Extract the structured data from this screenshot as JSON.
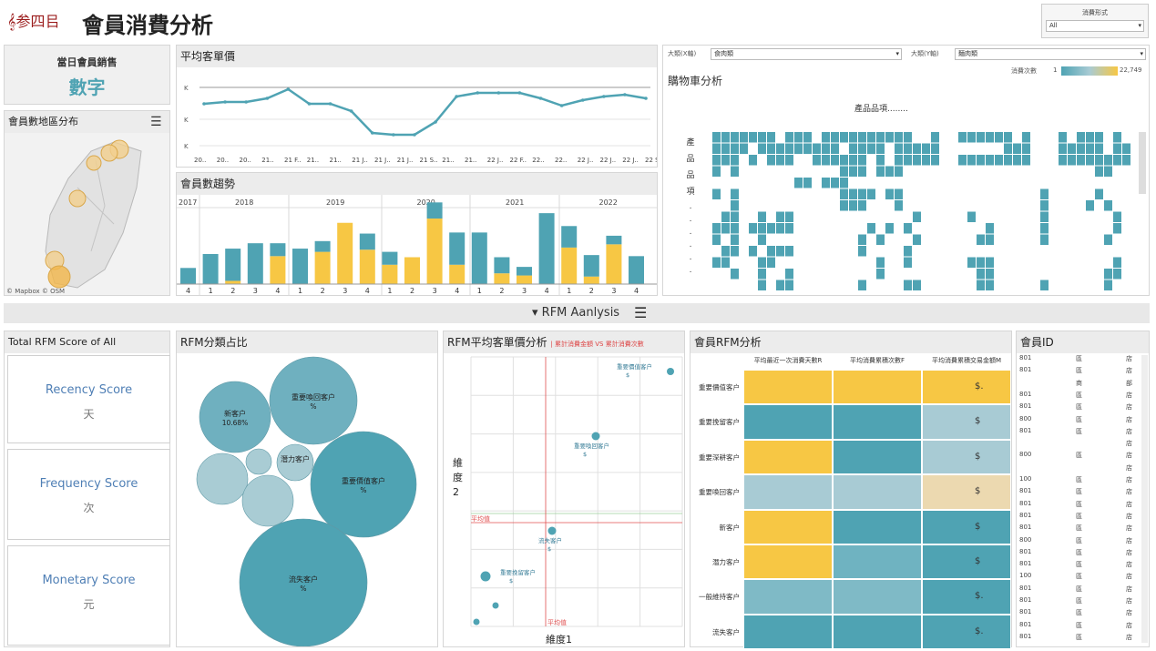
{
  "header": {
    "title": "會員消費分析",
    "logo_text": "𝄞参四㠯",
    "filter_label": "消費形式",
    "filter_value": "All"
  },
  "kpi": {
    "label": "當日會員銷售",
    "value": "數字"
  },
  "map": {
    "title": "會員數地區分布",
    "credit": "© Mapbox © OSM"
  },
  "avg_price": {
    "title": "平均客單價",
    "y_ticks": [
      "K",
      "K",
      "K"
    ],
    "x_ticks": [
      "20..",
      "20..",
      "20..",
      "21..",
      "21 F..",
      "21..",
      "21..",
      "21 J..",
      "21 J..",
      "21 J..",
      "21 S..",
      "21..",
      "21..",
      "22 J..",
      "22 F..",
      "22..",
      "22..",
      "22 J..",
      "22 J..",
      "22 J..",
      "22 S.."
    ],
    "values": [
      1.0,
      1.05,
      1.05,
      1.15,
      1.4,
      1.0,
      1.0,
      0.8,
      0.2,
      0.15,
      0.15,
      0.5,
      1.2,
      1.3,
      1.3,
      1.3,
      1.15,
      0.95,
      1.1,
      1.2,
      1.25,
      1.15
    ]
  },
  "member_trend": {
    "title": "會員數趨勢",
    "years": [
      "2017",
      "2018",
      "2019",
      "2020",
      "2021",
      "2022"
    ],
    "quarters": [
      "4",
      "1",
      "2",
      "3",
      "4",
      "1",
      "2",
      "3",
      "4",
      "1",
      "2",
      "3",
      "4",
      "1",
      "2",
      "3",
      "4",
      "1",
      "2",
      "3",
      "4"
    ],
    "blue": [
      15,
      28,
      30,
      38,
      12,
      33,
      10,
      0,
      15,
      12,
      0,
      15,
      30,
      48,
      15,
      8,
      66,
      20,
      20,
      8,
      26
    ],
    "gold": [
      0,
      0,
      3,
      0,
      26,
      0,
      30,
      57,
      32,
      18,
      25,
      61,
      18,
      0,
      10,
      8,
      0,
      34,
      7,
      37,
      0
    ]
  },
  "cart": {
    "title": "購物車分析",
    "x_label": "大類(X軸)",
    "x_value": "食肉類",
    "y_label": "大類(Y軸)",
    "y_value": "麵肉類",
    "legend_label": "消費次數",
    "legend_min": "1",
    "legend_max": "22,749",
    "col_header": "產品品項........",
    "row_header": [
      "產",
      "品",
      "品",
      "項",
      ".",
      ".",
      ".",
      ".",
      ".",
      "."
    ]
  },
  "section_title": "▾ RFM Aanlysis",
  "rfm_total": {
    "title": "Total RFM Score of All",
    "cards": [
      {
        "name": "Recency Score",
        "unit": "天"
      },
      {
        "name": "Frequency Score",
        "unit": "次"
      },
      {
        "name": "Monetary Score",
        "unit": "元"
      }
    ]
  },
  "bubbles": {
    "title": "RFM分類占比",
    "items": [
      {
        "label": "新客户",
        "sub": "10.68%"
      },
      {
        "label": "重要喚回客户",
        "sub": "%"
      },
      {
        "label": "潛力客户",
        "sub": ""
      },
      {
        "label": "重要價值客户",
        "sub": "%"
      },
      {
        "label": "流失客户",
        "sub": "%"
      },
      {
        "label": "",
        "sub": ""
      },
      {
        "label": "",
        "sub": ""
      },
      {
        "label": "",
        "sub": ""
      }
    ]
  },
  "scatter": {
    "title": "RFM平均客單價分析",
    "legend": "| 累計消費金額 VS 累計消費次數",
    "x_label": "維度1",
    "y_label": "維度2",
    "avg_h": "平均值",
    "avg_v": "平均值",
    "points": [
      {
        "label": "重要價值客户",
        "sub": "$"
      },
      {
        "label": "重要喚回客户",
        "sub": "$"
      },
      {
        "label": "流失客户",
        "sub": "$"
      },
      {
        "label": "重要挽留客户",
        "sub": "$"
      },
      {
        "label": "",
        "sub": ""
      },
      {
        "label": "",
        "sub": ""
      }
    ]
  },
  "heat": {
    "title": "會員RFM分析",
    "cols": [
      "平均最近一次消費天數R",
      "平均消費累積次數F",
      "平均消費累積交易金額M"
    ],
    "rows": [
      "重要價值客户",
      "重要挽留客户",
      "重要深耕客户",
      "重要喚回客户",
      "新客户",
      "潛力客户",
      "一般維持客户",
      "流失客户"
    ],
    "values": [
      "$.",
      "$",
      "$",
      "$",
      "$",
      "$",
      "$.",
      "$."
    ]
  },
  "ids": {
    "title": "會員ID",
    "rows": [
      [
        "801",
        "區",
        "店"
      ],
      [
        "801",
        "區",
        "店"
      ],
      [
        "",
        "商",
        "部"
      ],
      [
        "801",
        "區",
        "店"
      ],
      [
        "801",
        "區",
        "店"
      ],
      [
        "800",
        "區",
        "店"
      ],
      [
        "801",
        "區",
        "店"
      ],
      [
        "",
        "",
        "店"
      ],
      [
        "800",
        "區",
        "店"
      ],
      [
        "",
        "",
        "店"
      ],
      [
        "100",
        "區",
        "店"
      ],
      [
        "801",
        "區",
        "店"
      ],
      [
        "801",
        "區",
        "店"
      ],
      [
        "801",
        "區",
        "店"
      ],
      [
        "801",
        "區",
        "店"
      ],
      [
        "800",
        "區",
        "店"
      ],
      [
        "801",
        "區",
        "店"
      ],
      [
        "801",
        "區",
        "店"
      ],
      [
        "100",
        "區",
        "店"
      ],
      [
        "801",
        "區",
        "店"
      ],
      [
        "801",
        "區",
        "店"
      ],
      [
        "801",
        "區",
        "店"
      ],
      [
        "801",
        "區",
        "店"
      ],
      [
        "801",
        "區",
        "店"
      ]
    ]
  },
  "colors": {
    "teal": "#4fa3b3",
    "gold": "#f7c744",
    "light": "#a8cbd4",
    "beige": "#ecd9b0",
    "accent": "#4f7fb5"
  }
}
